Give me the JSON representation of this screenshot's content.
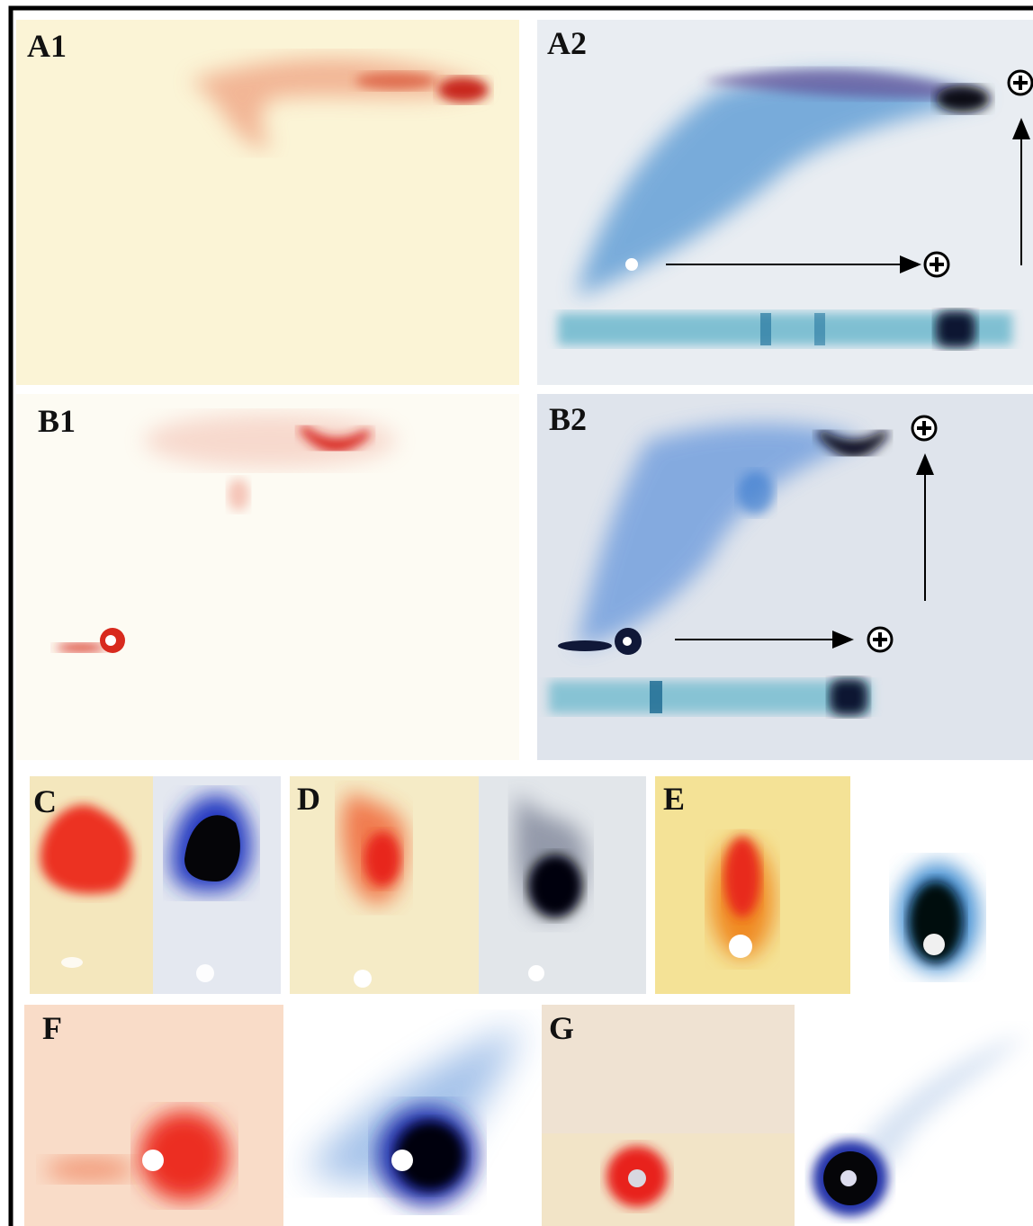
{
  "panels": [
    {
      "label": "A1"
    },
    {
      "label": "A2"
    },
    {
      "label": "B1"
    },
    {
      "label": "B2"
    },
    {
      "label": "C"
    },
    {
      "label": "D"
    },
    {
      "label": "E"
    },
    {
      "label": "F"
    },
    {
      "label": "G"
    }
  ]
}
